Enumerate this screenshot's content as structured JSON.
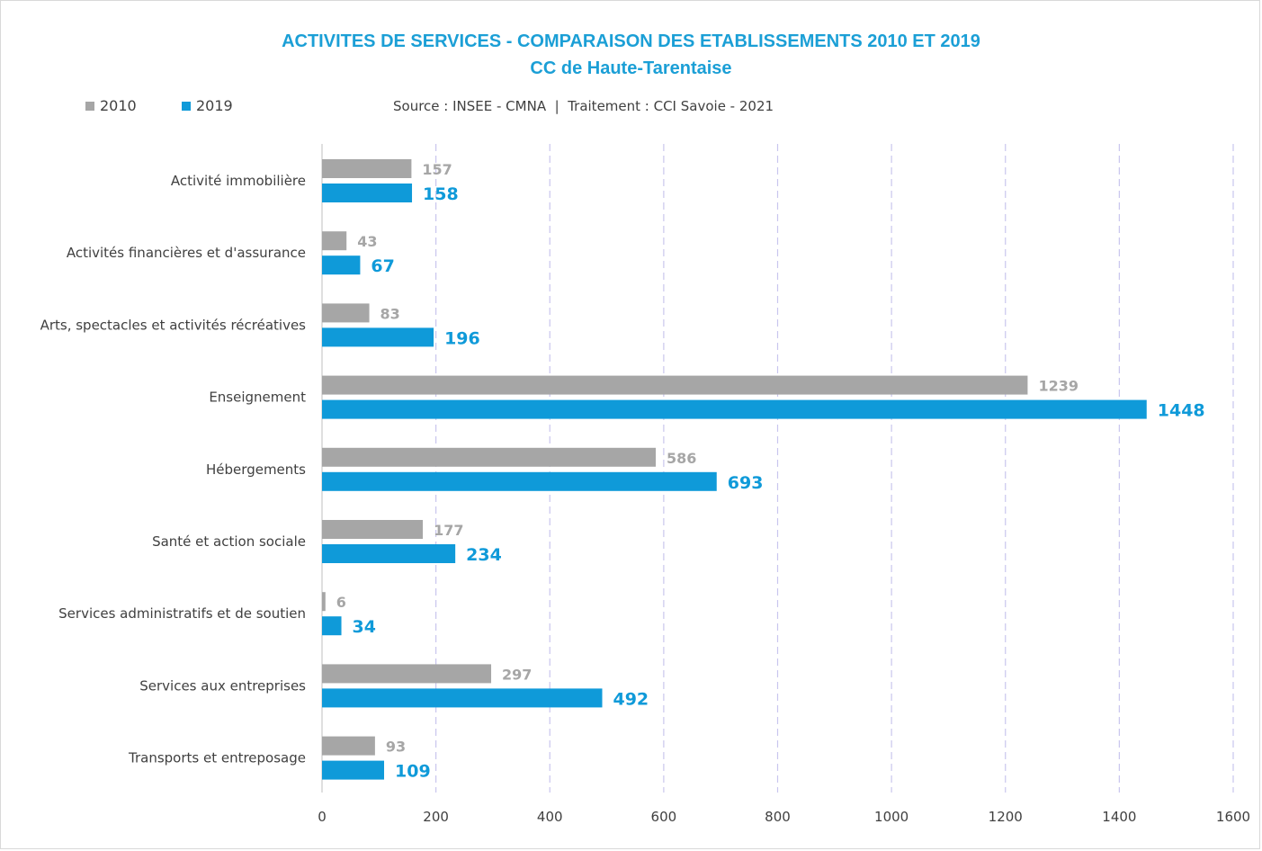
{
  "chart_data": {
    "type": "bar",
    "orientation": "horizontal",
    "title": "ACTIVITES DE SERVICES - COMPARAISON DES ETABLISSEMENTS 2010 ET 2019",
    "subtitle": "CC de Haute-Tarentaise",
    "source": "Source : INSEE - CMNA  |  Traitement : CCI Savoie - 2021",
    "categories": [
      "Activité immobilière",
      "Activités financières et d'assurance",
      "Arts, spectacles et activités récréatives",
      "Enseignement",
      "Hébergements",
      "Santé et action sociale",
      "Services administratifs et de soutien",
      "Services aux entreprises",
      "Transports et entreposage"
    ],
    "series": [
      {
        "name": "2010",
        "color": "#a6a6a6",
        "values": [
          157,
          43,
          83,
          1239,
          586,
          177,
          6,
          297,
          93
        ]
      },
      {
        "name": "2019",
        "color": "#0f9ad9",
        "values": [
          158,
          67,
          196,
          1448,
          693,
          234,
          34,
          492,
          109
        ]
      }
    ],
    "xlim": [
      0,
      1600
    ],
    "xticks": [
      0,
      200,
      400,
      600,
      800,
      1000,
      1200,
      1400,
      1600
    ],
    "xlabel": "",
    "ylabel": "",
    "grid": "vertical dashed",
    "legend": "top-left"
  }
}
